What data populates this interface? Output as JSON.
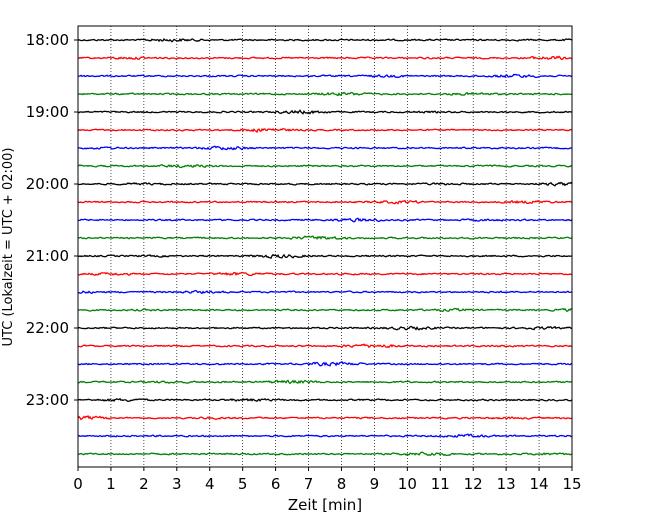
{
  "chart_data": {
    "type": "line",
    "title": "",
    "xlabel": "Zeit  [min]",
    "ylabel": "UTC (Lokalzeit = UTC + 02:00)",
    "xlim": [
      0,
      15
    ],
    "x_ticks": [
      "0",
      "1",
      "2",
      "3",
      "4",
      "5",
      "6",
      "7",
      "8",
      "9",
      "10",
      "11",
      "12",
      "13",
      "14",
      "15"
    ],
    "y_tick_labels": [
      "18:00",
      "19:00",
      "20:00",
      "21:00",
      "22:00",
      "23:00"
    ],
    "start_hour": 18,
    "traces_per_hour": 4,
    "num_traces": 24,
    "trace_colors": [
      "#000000",
      "#ff0000",
      "#0000ff",
      "#008000"
    ],
    "vertical_grid": "dotted",
    "horizontal_grid": false,
    "legend": "none"
  }
}
